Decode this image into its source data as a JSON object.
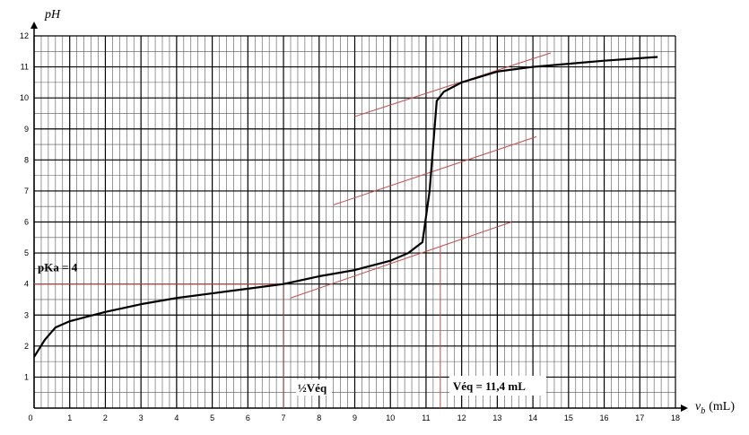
{
  "chart_data": {
    "type": "line",
    "y_label": "pH",
    "x_label_parts": [
      "v",
      "b",
      "(mL)"
    ],
    "x": [
      0,
      0.3,
      0.6,
      1,
      1.5,
      2,
      3,
      4,
      5,
      6,
      7,
      8,
      9,
      10,
      10.5,
      10.9,
      11.1,
      11.3,
      11.5,
      12,
      13,
      14,
      15,
      16,
      17,
      17.5
    ],
    "series": [
      {
        "color": "#000000",
        "values": [
          1.65,
          2.2,
          2.6,
          2.8,
          2.95,
          3.1,
          3.35,
          3.55,
          3.7,
          3.85,
          4.0,
          4.25,
          4.45,
          4.75,
          5.0,
          5.35,
          7.0,
          9.9,
          10.2,
          10.5,
          10.85,
          11.0,
          11.1,
          11.2,
          11.28,
          11.32
        ]
      }
    ],
    "xlim": [
      0,
      18
    ],
    "ylim": [
      0,
      12
    ],
    "xticks": [
      0,
      1,
      2,
      3,
      4,
      5,
      6,
      7,
      8,
      9,
      10,
      11,
      12,
      13,
      14,
      15,
      16,
      17,
      18
    ],
    "yticks": [
      1,
      2,
      3,
      4,
      5,
      6,
      7,
      8,
      9,
      10,
      11,
      12
    ],
    "grid": true,
    "guide_color": "#c0504d",
    "guide_lines": [
      {
        "x": [
          0,
          7
        ],
        "y": [
          4,
          4
        ]
      },
      {
        "x": [
          7,
          7
        ],
        "y": [
          4,
          0
        ]
      },
      {
        "x": [
          11.4,
          11.4
        ],
        "y": [
          5.2,
          0
        ]
      },
      {
        "x": [
          7.2,
          13.4
        ],
        "y": [
          3.55,
          6.0
        ]
      },
      {
        "x": [
          8.4,
          14.1
        ],
        "y": [
          6.55,
          8.75
        ]
      },
      {
        "x": [
          9.0,
          14.5
        ],
        "y": [
          9.4,
          11.45
        ]
      }
    ],
    "annotations": [
      "pKa = 4",
      "½Véq",
      "Véq = 11,4 mL"
    ]
  }
}
